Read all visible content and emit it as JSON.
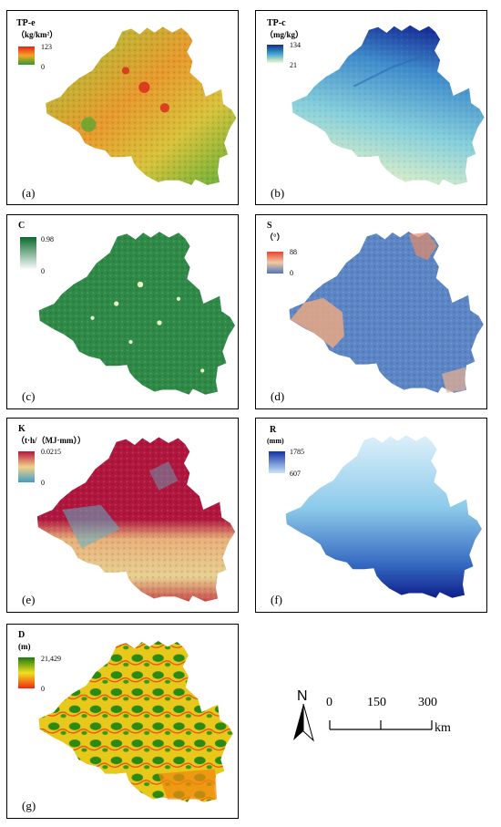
{
  "panels": [
    {
      "id": "a",
      "title": "TP-e",
      "unit": "（kg/km²）",
      "max": "123",
      "min": "0",
      "label": "(a)"
    },
    {
      "id": "b",
      "title": "TP-c",
      "unit": "（mg/kg）",
      "max": "134",
      "min": "21",
      "label": "(b)"
    },
    {
      "id": "c",
      "title": "C",
      "unit": "",
      "max": "0.98",
      "min": "0",
      "label": "(c)"
    },
    {
      "id": "d",
      "title": "S",
      "unit": "（°）",
      "max": "88",
      "min": "0",
      "label": "(d)"
    },
    {
      "id": "e",
      "title": "K",
      "unit": "（t·h/（MJ·mm））",
      "max": "0.0215",
      "min": "0",
      "label": "(e)"
    },
    {
      "id": "f",
      "title": "R",
      "unit": "(mm)",
      "max": "1785",
      "min": "607",
      "label": "(f)"
    },
    {
      "id": "g",
      "title": "D",
      "unit": "(m)",
      "max": "21,429",
      "min": "0",
      "label": "(g)"
    }
  ],
  "legend_colors": {
    "a": [
      "#e8201c",
      "#f5a623",
      "#2e9b2e"
    ],
    "b": [
      "#132c8c",
      "#3ca4d0",
      "#f4f8c8"
    ],
    "c": [
      "#0a6a2e",
      "#ffffff"
    ],
    "d": [
      "#e8452c",
      "#f2c9a4",
      "#4e74b8"
    ],
    "e": [
      "#b8163c",
      "#f4d08a",
      "#3f9ec4"
    ],
    "f": [
      "#1530a8",
      "#c8e8f8"
    ],
    "g": [
      "#1a7a10",
      "#f0e020",
      "#ee2a10"
    ]
  },
  "fills": {
    "a": "#6cb83a",
    "b": "#7cc4de",
    "c": "#2e8a46",
    "d": "#5a8ac8",
    "e": "#b81e48",
    "f": "#8ec8ea",
    "g": "#e6c818"
  },
  "north": {
    "letter": "N"
  },
  "scalebar": {
    "ticks": [
      "0",
      "150",
      "300"
    ],
    "unit": "km"
  }
}
